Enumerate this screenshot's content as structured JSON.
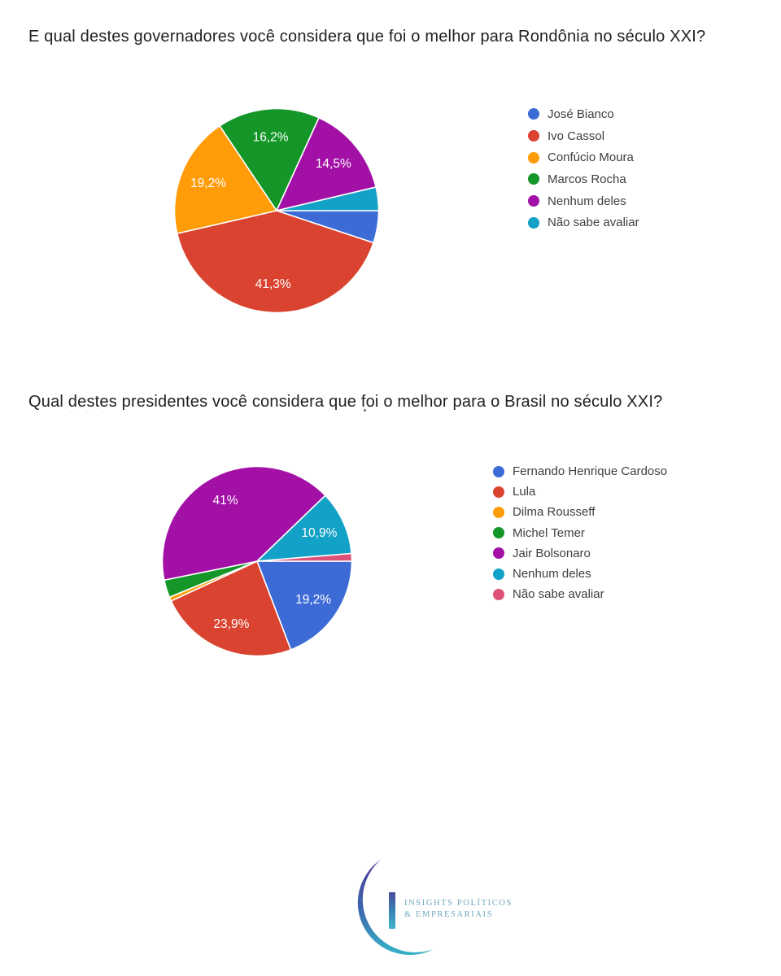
{
  "page": {
    "background": "#FFFFFF",
    "truncated_text_artifact": "- - -"
  },
  "chart_data": [
    {
      "type": "pie",
      "title": "E qual destes governadores você considera que foi o melhor para Rondônia no século XXI?",
      "legend_position": "right",
      "rotation": "first slice starts at 3 o'clock, clockwise, legend order",
      "slices": [
        {
          "name": "José Bianco",
          "value": 5.1,
          "display_label": "",
          "color": "#3C6BD6"
        },
        {
          "name": "Ivo Cassol",
          "value": 41.3,
          "display_label": "41,3%",
          "color": "#DA4330"
        },
        {
          "name": "Confúcio Moura",
          "value": 19.2,
          "display_label": "19,2%",
          "color": "#FF9C07"
        },
        {
          "name": "Marcos Rocha",
          "value": 16.2,
          "display_label": "16,2%",
          "color": "#149628"
        },
        {
          "name": "Nenhum deles",
          "value": 14.5,
          "display_label": "14,5%",
          "color": "#A210A6"
        },
        {
          "name": "Não sabe avaliar",
          "value": 3.7,
          "display_label": "",
          "color": "#12A1C7"
        }
      ]
    },
    {
      "type": "pie",
      "title": "Qual destes presidentes você considera que foi o melhor para o Brasil no século XXI?",
      "legend_position": "right",
      "rotation": "first slice starts at 3 o'clock, clockwise, legend order",
      "slices": [
        {
          "name": "Fernando Henrique Cardoso",
          "value": 19.2,
          "display_label": "19,2%",
          "color": "#3C6BD6"
        },
        {
          "name": "Lula",
          "value": 23.9,
          "display_label": "23,9%",
          "color": "#DA4330"
        },
        {
          "name": "Dilma Rousseff",
          "value": 0.7,
          "display_label": "",
          "color": "#FF9C07"
        },
        {
          "name": "Michel Temer",
          "value": 3.0,
          "display_label": "",
          "color": "#149628"
        },
        {
          "name": "Jair Bolsonaro",
          "value": 41.0,
          "display_label": "41%",
          "color": "#A210A6"
        },
        {
          "name": "Nenhum deles",
          "value": 10.9,
          "display_label": "10,9%",
          "color": "#12A1C7"
        },
        {
          "name": "Não sabe avaliar",
          "value": 1.3,
          "display_label": "",
          "color": "#DE5078"
        }
      ]
    }
  ],
  "footer": {
    "logo_line1": "INSIGHTS POLÍTICOS",
    "logo_line2": "& EMPRESARIAIS"
  }
}
